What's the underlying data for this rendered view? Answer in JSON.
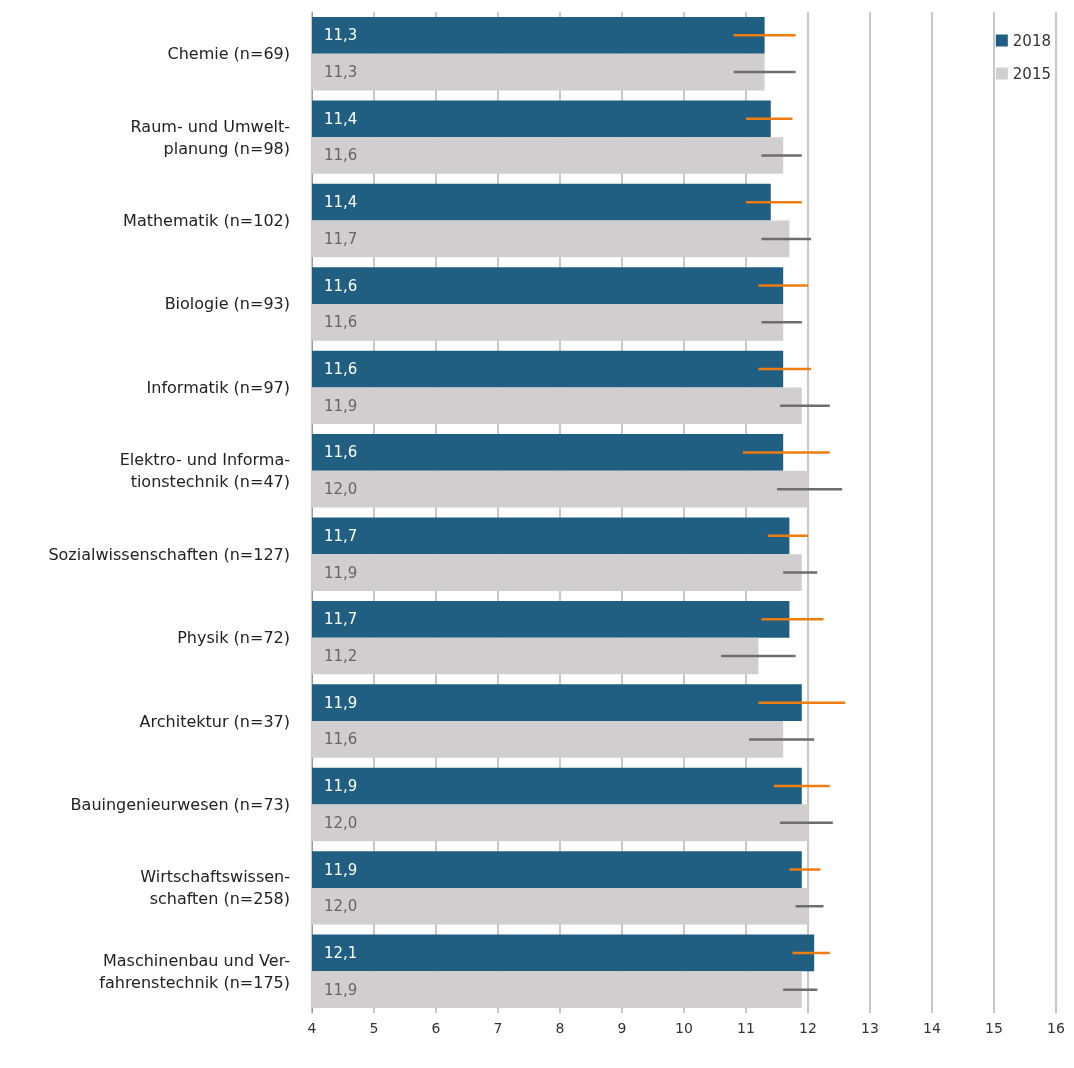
{
  "chart_data": {
    "type": "bar",
    "orientation": "horizontal",
    "categories": [
      "Chemie (n=69)",
      "Raum- und Umwelt-\nplanung (n=98)",
      "Mathematik (n=102)",
      "Biologie (n=93)",
      "Informatik (n=97)",
      "Elektro- und Informa-\ntionstechnik (n=47)",
      "Sozialwissenschaften (n=127)",
      "Physik (n=72)",
      "Architektur (n=37)",
      "Bauingenieurwesen (n=73)",
      "Wirtschaftswissen-\nschaften (n=258)",
      "Maschinenbau und Ver-\nfahrenstechnik (n=175)"
    ],
    "series": [
      {
        "name": "2018",
        "color": "#215f82",
        "values": [
          11.3,
          11.4,
          11.4,
          11.6,
          11.6,
          11.6,
          11.7,
          11.7,
          11.9,
          11.9,
          11.9,
          12.1
        ],
        "value_labels": [
          "11,3",
          "11,4",
          "11,4",
          "11,6",
          "11,6",
          "11,6",
          "11,7",
          "11,7",
          "11,9",
          "11,9",
          "11,9",
          "12,1"
        ],
        "errors": [
          [
            10.8,
            11.8
          ],
          [
            11.0,
            11.75
          ],
          [
            11.0,
            11.9
          ],
          [
            11.2,
            12.0
          ],
          [
            11.2,
            12.05
          ],
          [
            10.95,
            12.35
          ],
          [
            11.35,
            12.0
          ],
          [
            11.25,
            12.25
          ],
          [
            11.2,
            12.6
          ],
          [
            11.45,
            12.35
          ],
          [
            11.7,
            12.2
          ],
          [
            11.75,
            12.35
          ]
        ]
      },
      {
        "name": "2015",
        "color": "#d0cece",
        "values": [
          11.3,
          11.6,
          11.7,
          11.6,
          11.9,
          12.0,
          11.9,
          11.2,
          11.6,
          12.0,
          12.0,
          11.9
        ],
        "value_labels": [
          "11,3",
          "11,6",
          "11,7",
          "11,6",
          "11,9",
          "12,0",
          "11,9",
          "11,2",
          "11,6",
          "12,0",
          "12,0",
          "11,9"
        ],
        "errors": [
          [
            10.8,
            11.8
          ],
          [
            11.25,
            11.9
          ],
          [
            11.25,
            12.05
          ],
          [
            11.25,
            11.9
          ],
          [
            11.55,
            12.35
          ],
          [
            11.5,
            12.55
          ],
          [
            11.6,
            12.15
          ],
          [
            10.6,
            11.8
          ],
          [
            11.05,
            12.1
          ],
          [
            11.55,
            12.4
          ],
          [
            11.8,
            12.25
          ],
          [
            11.6,
            12.15
          ]
        ]
      }
    ],
    "xlim": [
      4,
      16
    ],
    "xticks": [
      4,
      5,
      6,
      7,
      8,
      9,
      10,
      11,
      12,
      13,
      14,
      15,
      16
    ],
    "grid": "x",
    "legend": "top right"
  }
}
